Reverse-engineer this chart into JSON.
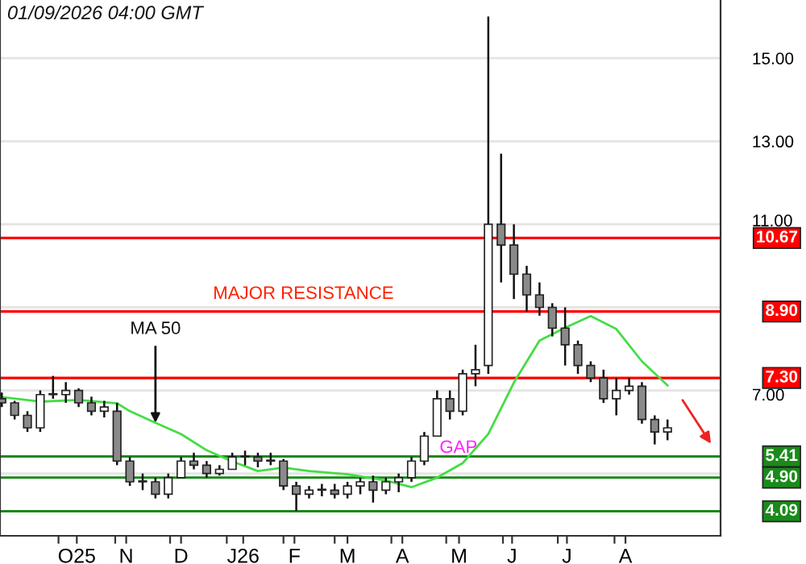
{
  "chart_data": {
    "type": "candlestick",
    "x": [
      "2025-08-31",
      "2025-09-07",
      "2025-09-14",
      "2025-09-21",
      "2025-09-28",
      "2025-10-05",
      "2025-10-12",
      "2025-10-19",
      "2025-10-26",
      "2025-11-02",
      "2025-11-09",
      "2025-11-16",
      "2025-11-23",
      "2025-11-30",
      "2025-12-07",
      "2025-12-14",
      "2025-12-21",
      "2025-12-28",
      "2026-01-04",
      "2026-01-11",
      "2026-01-18",
      "2026-01-25",
      "2026-02-01",
      "2026-02-08",
      "2026-02-15",
      "2026-02-22",
      "2026-03-01",
      "2026-03-08",
      "2026-03-15",
      "2026-03-22",
      "2026-03-29",
      "2026-04-05",
      "2026-04-12",
      "2026-04-19",
      "2026-04-26",
      "2026-05-03",
      "2026-05-10",
      "2026-05-17",
      "2026-05-24",
      "2026-05-31",
      "2026-06-07",
      "2026-06-14",
      "2026-06-21",
      "2026-06-28",
      "2026-07-05",
      "2026-07-12",
      "2026-07-19",
      "2026-07-26",
      "2026-08-02",
      "2026-08-09",
      "2026-08-16",
      "2026-08-23",
      "2026-08-30"
    ],
    "ohlc": [
      [
        6.8,
        6.95,
        6.6,
        6.7
      ],
      [
        6.7,
        6.75,
        6.3,
        6.4
      ],
      [
        6.4,
        6.5,
        6.0,
        6.1
      ],
      [
        6.1,
        7.0,
        6.0,
        6.9
      ],
      [
        6.9,
        7.35,
        6.8,
        6.9
      ],
      [
        6.9,
        7.2,
        6.7,
        7.0
      ],
      [
        7.0,
        7.05,
        6.6,
        6.7
      ],
      [
        6.7,
        6.85,
        6.4,
        6.5
      ],
      [
        6.5,
        6.75,
        6.35,
        6.6
      ],
      [
        6.5,
        6.7,
        5.2,
        5.3
      ],
      [
        5.3,
        5.4,
        4.7,
        4.8
      ],
      [
        4.8,
        5.0,
        4.6,
        4.8
      ],
      [
        4.8,
        4.9,
        4.4,
        4.5
      ],
      [
        4.5,
        5.0,
        4.4,
        4.9
      ],
      [
        4.9,
        5.4,
        4.9,
        5.3
      ],
      [
        5.3,
        5.5,
        5.1,
        5.2
      ],
      [
        5.2,
        5.3,
        4.9,
        5.0
      ],
      [
        5.0,
        5.2,
        4.95,
        5.1
      ],
      [
        5.1,
        5.5,
        5.1,
        5.4
      ],
      [
        5.4,
        5.55,
        5.2,
        5.4
      ],
      [
        5.4,
        5.5,
        5.15,
        5.3
      ],
      [
        5.3,
        5.5,
        5.2,
        5.3
      ],
      [
        5.3,
        5.35,
        4.6,
        4.7
      ],
      [
        4.7,
        4.8,
        4.1,
        4.5
      ],
      [
        4.5,
        4.7,
        4.4,
        4.6
      ],
      [
        4.6,
        4.75,
        4.45,
        4.6
      ],
      [
        4.6,
        4.75,
        4.4,
        4.5
      ],
      [
        4.5,
        4.8,
        4.4,
        4.7
      ],
      [
        4.7,
        4.9,
        4.5,
        4.8
      ],
      [
        4.8,
        4.95,
        4.3,
        4.6
      ],
      [
        4.6,
        4.9,
        4.5,
        4.8
      ],
      [
        4.8,
        5.0,
        4.55,
        4.9
      ],
      [
        4.9,
        5.4,
        4.8,
        5.3
      ],
      [
        5.3,
        6.0,
        5.2,
        5.9
      ],
      [
        5.9,
        7.0,
        5.9,
        6.8
      ],
      [
        6.8,
        7.0,
        6.3,
        6.5
      ],
      [
        6.5,
        7.5,
        6.4,
        7.4
      ],
      [
        7.4,
        8.1,
        7.1,
        7.5
      ],
      [
        7.6,
        16.0,
        7.4,
        11.0
      ],
      [
        11.0,
        12.7,
        9.6,
        10.5
      ],
      [
        10.5,
        11.0,
        9.2,
        9.8
      ],
      [
        9.8,
        10.0,
        8.9,
        9.3
      ],
      [
        9.3,
        9.6,
        8.8,
        9.0
      ],
      [
        9.0,
        9.1,
        8.3,
        8.5
      ],
      [
        8.5,
        9.0,
        7.6,
        8.1
      ],
      [
        8.1,
        8.2,
        7.4,
        7.6
      ],
      [
        7.6,
        7.7,
        7.2,
        7.3
      ],
      [
        7.3,
        7.5,
        6.7,
        6.8
      ],
      [
        6.8,
        7.3,
        6.4,
        7.0
      ],
      [
        7.0,
        7.3,
        6.9,
        7.1
      ],
      [
        7.1,
        7.2,
        6.2,
        6.3
      ],
      [
        6.3,
        6.4,
        5.7,
        6.0
      ],
      [
        6.0,
        6.3,
        5.8,
        6.1
      ]
    ],
    "series": [
      {
        "type": "line",
        "color": "#44dd44",
        "x": [
          "2025-08-31",
          "2025-09-21",
          "2025-10-12",
          "2025-11-02",
          "2025-11-09",
          "2025-11-23",
          "2025-12-07",
          "2025-12-21",
          "2026-01-04",
          "2026-01-18",
          "2026-02-01",
          "2026-02-15",
          "2026-03-08",
          "2026-03-29",
          "2026-04-12",
          "2026-04-26",
          "2026-05-10",
          "2026-05-24",
          "2026-06-07",
          "2026-06-21",
          "2026-07-05",
          "2026-07-19",
          "2026-08-02",
          "2026-08-16",
          "2026-08-30"
        ],
        "values": [
          6.84,
          6.73,
          6.77,
          6.69,
          6.5,
          6.22,
          5.95,
          5.56,
          5.29,
          5.06,
          5.14,
          5.06,
          4.98,
          4.83,
          4.67,
          4.9,
          5.25,
          5.95,
          7.19,
          8.2,
          8.51,
          8.79,
          8.48,
          7.7,
          7.12
        ]
      }
    ],
    "xlim": [
      "2025-08-30",
      "2026-09-28"
    ],
    "xticks": [
      {
        "value": "2025-10-01",
        "label": null
      },
      {
        "value": "2025-10-11",
        "label": "O25"
      },
      {
        "value": "2025-11-01",
        "label": null
      },
      {
        "value": "2025-11-07",
        "label": "N"
      },
      {
        "value": "2025-12-01",
        "label": null
      },
      {
        "value": "2025-12-07",
        "label": "D"
      },
      {
        "value": "2026-01-01",
        "label": null
      },
      {
        "value": "2026-01-10",
        "label": "J26"
      },
      {
        "value": "2026-02-01",
        "label": null
      },
      {
        "value": "2026-02-07",
        "label": "F"
      },
      {
        "value": "2026-03-01",
        "label": null
      },
      {
        "value": "2026-03-08",
        "label": "M"
      },
      {
        "value": "2026-04-01",
        "label": null
      },
      {
        "value": "2026-04-07",
        "label": "A"
      },
      {
        "value": "2026-05-01",
        "label": null
      },
      {
        "value": "2026-05-08",
        "label": "M"
      },
      {
        "value": "2026-06-01",
        "label": null
      },
      {
        "value": "2026-06-06",
        "label": "J"
      },
      {
        "value": "2026-07-01",
        "label": null
      },
      {
        "value": "2026-07-06",
        "label": "J"
      },
      {
        "value": "2026-08-01",
        "label": null
      },
      {
        "value": "2026-08-07",
        "label": "A"
      }
    ],
    "ylim": [
      3.5,
      16.4
    ],
    "yticks": [
      {
        "value": 5,
        "label": null
      },
      {
        "value": 7,
        "label": "7.00"
      },
      {
        "value": 9,
        "label": null
      },
      {
        "value": 11,
        "label": "11.00"
      },
      {
        "value": 13,
        "label": "13.00"
      },
      {
        "value": 15,
        "label": "15.00"
      }
    ],
    "grid": "y",
    "ref_lines": [
      {
        "axis": "y",
        "value": 10.67,
        "label": "10.67",
        "color": "#ff0000"
      },
      {
        "axis": "y",
        "value": 8.9,
        "label": "8.90",
        "color": "#ff0000"
      },
      {
        "axis": "y",
        "value": 7.3,
        "label": "7.30",
        "color": "#ff0000"
      },
      {
        "axis": "y",
        "value": 5.41,
        "label": "5.41",
        "color": "#1a8a1a"
      },
      {
        "axis": "y",
        "value": 4.9,
        "label": "4.90",
        "color": "#1a8a1a"
      },
      {
        "axis": "y",
        "value": 4.09,
        "label": "4.09",
        "color": "#1a8a1a"
      }
    ],
    "annotations": [
      "01/09/2026 04:00 GMT",
      {
        "text": "MAJOR RESISTANCE",
        "x": "2025-12-22",
        "y": 8.9
      },
      {
        "text": "MA 50",
        "x": "2025-11-23",
        "y": 6.22
      },
      "GAP"
    ]
  }
}
